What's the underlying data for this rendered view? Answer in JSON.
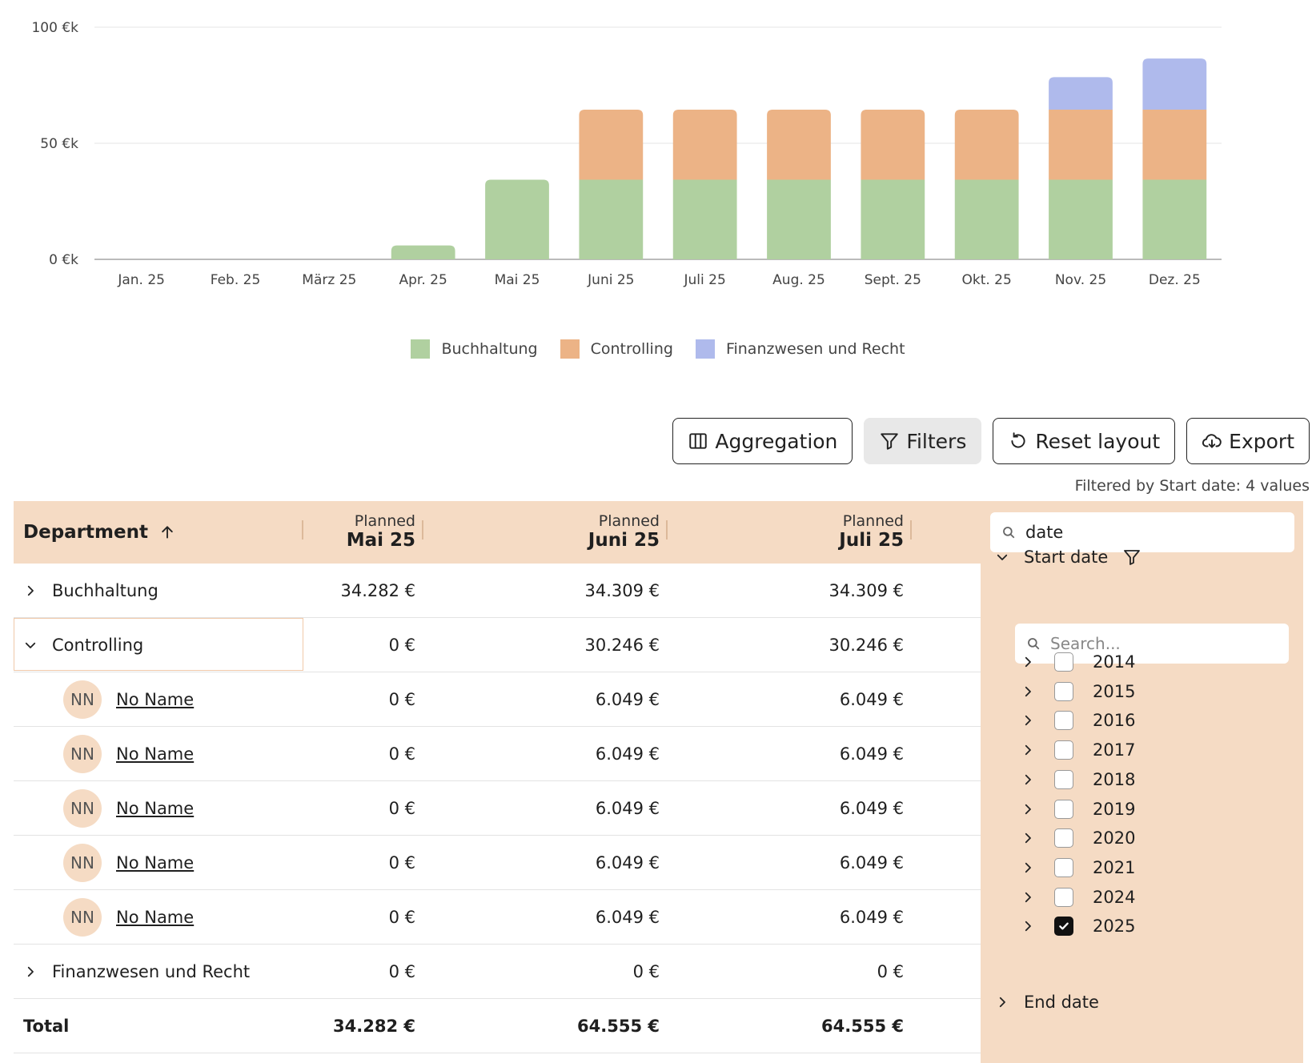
{
  "chart_data": {
    "type": "bar",
    "stacked": true,
    "categories": [
      "Jan. 25",
      "Feb. 25",
      "März 25",
      "Apr. 25",
      "Mai 25",
      "Juni 25",
      "Juli 25",
      "Aug. 25",
      "Sept. 25",
      "Okt. 25",
      "Nov. 25",
      "Dez. 25"
    ],
    "series": [
      {
        "name": "Buchhaltung",
        "color": "#b0d0a0",
        "values": [
          0,
          0,
          0,
          6,
          34.3,
          34.3,
          34.3,
          34.3,
          34.3,
          34.3,
          34.3,
          34.3
        ]
      },
      {
        "name": "Controlling",
        "color": "#ecb386",
        "values": [
          0,
          0,
          0,
          0,
          0,
          30.2,
          30.2,
          30.2,
          30.2,
          30.2,
          30.2,
          30.2
        ]
      },
      {
        "name": "Finanzwesen und Recht",
        "color": "#afbaec",
        "values": [
          0,
          0,
          0,
          0,
          0,
          0,
          0,
          0,
          0,
          0,
          14,
          22
        ]
      }
    ],
    "yticks": [
      {
        "value": 0,
        "label": "0 €k"
      },
      {
        "value": 50,
        "label": "50 €k"
      },
      {
        "value": 100,
        "label": "100 €k"
      }
    ],
    "ylim": [
      0,
      100
    ],
    "grid": true,
    "legend": "bottom-center"
  },
  "toolbar": {
    "aggregation": "Aggregation",
    "filters": "Filters",
    "reset": "Reset layout",
    "export": "Export"
  },
  "filter_note": "Filtered by Start date: 4 values",
  "table": {
    "dept_header": "Department",
    "columns": [
      {
        "small": "Planned",
        "big": "Mai 25"
      },
      {
        "small": "Planned",
        "big": "Juni 25"
      },
      {
        "small": "Planned",
        "big": "Juli 25"
      }
    ],
    "rows": [
      {
        "type": "group",
        "label": "Buchhaltung",
        "expanded": false,
        "values": [
          "34.282 €",
          "34.309 €",
          "34.309 €"
        ]
      },
      {
        "type": "group",
        "label": "Controlling",
        "expanded": true,
        "selected": true,
        "values": [
          "0 €",
          "30.246 €",
          "30.246 €"
        ]
      },
      {
        "type": "person",
        "avatar": "NN",
        "label": "No Name",
        "values": [
          "0 €",
          "6.049 €",
          "6.049 €"
        ]
      },
      {
        "type": "person",
        "avatar": "NN",
        "label": "No Name",
        "values": [
          "0 €",
          "6.049 €",
          "6.049 €"
        ]
      },
      {
        "type": "person",
        "avatar": "NN",
        "label": "No Name",
        "values": [
          "0 €",
          "6.049 €",
          "6.049 €"
        ]
      },
      {
        "type": "person",
        "avatar": "NN",
        "label": "No Name",
        "values": [
          "0 €",
          "6.049 €",
          "6.049 €"
        ]
      },
      {
        "type": "person",
        "avatar": "NN",
        "label": "No Name",
        "values": [
          "0 €",
          "6.049 €",
          "6.049 €"
        ]
      },
      {
        "type": "group",
        "label": "Finanzwesen und Recht",
        "expanded": false,
        "values": [
          "0 €",
          "0 €",
          "0 €"
        ]
      },
      {
        "type": "total",
        "label": "Total",
        "values": [
          "34.282 €",
          "64.555 €",
          "64.555 €"
        ]
      }
    ]
  },
  "filter_panel": {
    "search_value": "date",
    "start_date_label": "Start date",
    "inner_search_placeholder": "Search...",
    "years": [
      {
        "label": "2014",
        "checked": false
      },
      {
        "label": "2015",
        "checked": false
      },
      {
        "label": "2016",
        "checked": false
      },
      {
        "label": "2017",
        "checked": false
      },
      {
        "label": "2018",
        "checked": false
      },
      {
        "label": "2019",
        "checked": false
      },
      {
        "label": "2020",
        "checked": false
      },
      {
        "label": "2021",
        "checked": false
      },
      {
        "label": "2024",
        "checked": false
      },
      {
        "label": "2025",
        "checked": true
      }
    ],
    "end_date_label": "End date"
  }
}
